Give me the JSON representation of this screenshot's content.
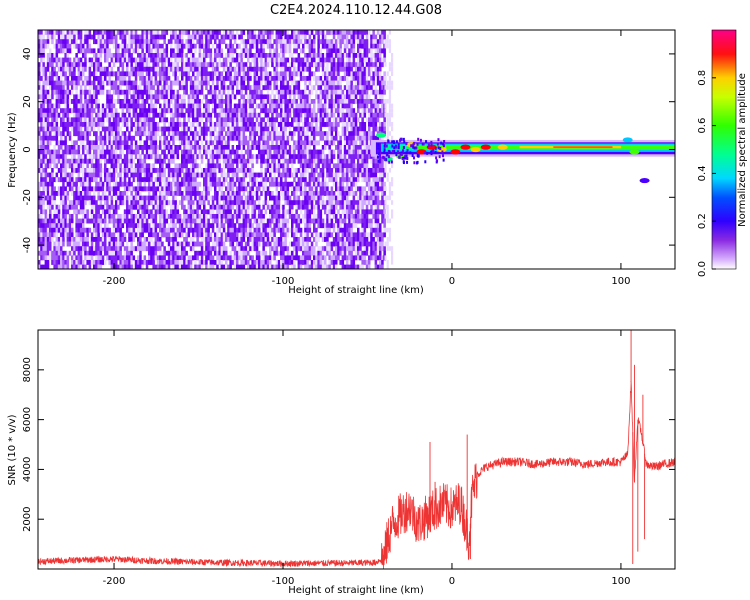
{
  "title": "C2E4.2024.110.12.44.G08",
  "chart_data": [
    {
      "type": "heatmap",
      "xlabel": "Height of straight line (km)",
      "ylabel": "Frequency (Hz)",
      "xlim": [
        -245,
        132
      ],
      "ylim": [
        -50,
        50
      ],
      "xticks": [
        -200,
        -100,
        0,
        100
      ],
      "yticks": [
        -40,
        -20,
        0,
        20,
        40
      ],
      "xtick_labels": [
        "-200",
        "-100",
        "0",
        "100"
      ],
      "ytick_labels": [
        "-40",
        "-20",
        "0",
        "20",
        "40"
      ],
      "noise_region_x": [
        -245,
        -40
      ],
      "carrier_freq": 1,
      "colorbar": {
        "label": "Normalized spectral amplitude",
        "range": [
          0,
          1
        ],
        "ticks": [
          0.0,
          0.2,
          0.4,
          0.6,
          0.8
        ],
        "tick_labels": [
          "0.0",
          "0.2",
          "0.4",
          "0.6",
          "0.8"
        ],
        "colormap": "hsv-rainbow",
        "colors": [
          "#ffffff",
          "#a020f0",
          "#6a00f4",
          "#0000ff",
          "#00c8ff",
          "#00ff80",
          "#40ff00",
          "#c8ff00",
          "#ffd000",
          "#ff0000",
          "#ff0080"
        ]
      }
    },
    {
      "type": "line",
      "xlabel": "Height of straight line (km)",
      "ylabel": "SNR (10 * v/v)",
      "xlim": [
        -245,
        132
      ],
      "ylim": [
        0,
        9600
      ],
      "xticks": [
        -200,
        -100,
        0,
        100
      ],
      "yticks": [
        2000,
        4000,
        6000,
        8000
      ],
      "xtick_labels": [
        "-200",
        "-100",
        "0",
        "100"
      ],
      "ytick_labels": [
        "2000",
        "4000",
        "6000",
        "8000"
      ],
      "color": "#ee3333",
      "x": [
        -245,
        -220,
        -200,
        -180,
        -160,
        -140,
        -120,
        -100,
        -80,
        -60,
        -45,
        -40,
        -38,
        -35,
        -30,
        -25,
        -20,
        -15,
        -10,
        -5,
        0,
        5,
        10,
        12,
        15,
        20,
        25,
        30,
        40,
        50,
        60,
        70,
        80,
        90,
        100,
        104,
        106,
        108,
        110,
        112,
        115,
        120,
        125,
        132
      ],
      "y": [
        300,
        360,
        400,
        330,
        290,
        260,
        240,
        220,
        230,
        240,
        260,
        500,
        1200,
        1800,
        2200,
        2500,
        1800,
        2100,
        2400,
        2600,
        2400,
        2700,
        1200,
        3000,
        3800,
        4100,
        4200,
        4300,
        4300,
        4200,
        4300,
        4300,
        4200,
        4300,
        4300,
        4600,
        7500,
        3500,
        6000,
        5500,
        4200,
        4100,
        4200,
        4300
      ],
      "spikes": [
        {
          "x": -13,
          "y": 5100
        },
        {
          "x": -10,
          "y": 3500
        },
        {
          "x": 9,
          "y": 5400
        },
        {
          "x": 11,
          "y": 400
        },
        {
          "x": 106,
          "y": 9600
        },
        {
          "x": 107,
          "y": 200
        },
        {
          "x": 108,
          "y": 8200
        },
        {
          "x": 110,
          "y": 700
        },
        {
          "x": 113,
          "y": 7000
        },
        {
          "x": 114,
          "y": 1200
        }
      ]
    }
  ]
}
